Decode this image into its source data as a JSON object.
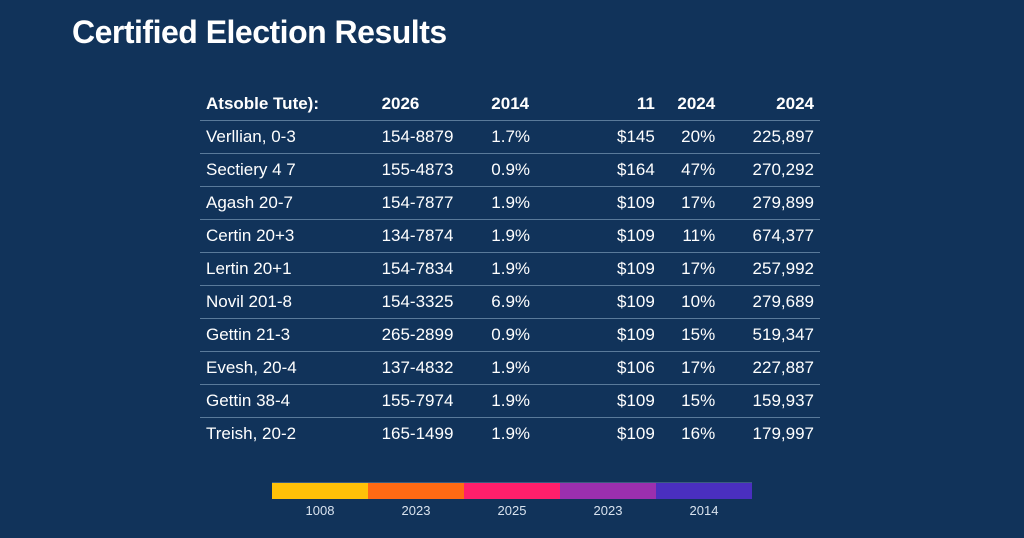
{
  "title": "Certified Election Results",
  "table": {
    "header_label": "Atsoble Tute):",
    "columns": [
      "2026",
      "2014",
      "11",
      "2024",
      "2024"
    ],
    "rows": [
      {
        "name": "Verllian, 0-3",
        "code": "154-8879",
        "pct": "1.7%",
        "amt": "$145",
        "pct2": "20%",
        "total": "225,897"
      },
      {
        "name": "Sectiery 4 7",
        "code": "155-4873",
        "pct": "0.9%",
        "amt": "$164",
        "pct2": "47%",
        "total": "270,292"
      },
      {
        "name": "Agash 20-7",
        "code": "154-7877",
        "pct": "1.9%",
        "amt": "$109",
        "pct2": "17%",
        "total": "279,899"
      },
      {
        "name": "Certin 20+3",
        "code": "134-7874",
        "pct": "1.9%",
        "amt": "$109",
        "pct2": "11%",
        "total": "674,377"
      },
      {
        "name": "Lertin 20+1",
        "code": "154-7834",
        "pct": "1.9%",
        "amt": "$109",
        "pct2": "17%",
        "total": "257,992"
      },
      {
        "name": "Novil 201-8",
        "code": "154-3325",
        "pct": "6.9%",
        "amt": "$109",
        "pct2": "10%",
        "total": "279,689"
      },
      {
        "name": "Gettin 21-3",
        "code": "265-2899",
        "pct": "0.9%",
        "amt": "$109",
        "pct2": "15%",
        "total": "519,347"
      },
      {
        "name": "Evesh, 20-4",
        "code": "137-4832",
        "pct": "1.9%",
        "amt": "$106",
        "pct2": "17%",
        "total": "227,887"
      },
      {
        "name": "Gettin 38-4",
        "code": "155-7974",
        "pct": "1.9%",
        "amt": "$109",
        "pct2": "15%",
        "total": "159,937"
      },
      {
        "name": "Treish, 20-2",
        "code": "165-1499",
        "pct": "1.9%",
        "amt": "$109",
        "pct2": "16%",
        "total": "179,997"
      }
    ],
    "header_fontweight": "700",
    "row_border_color": "#5a7a9a",
    "fontsize": 17,
    "text_color": "#ffffff"
  },
  "legend": {
    "items": [
      {
        "label": "1008",
        "color": "#ffc108"
      },
      {
        "label": "2023",
        "color": "#ff6a13"
      },
      {
        "label": "2025",
        "color": "#ff1f6b"
      },
      {
        "label": "2023",
        "color": "#9b2fae"
      },
      {
        "label": "2014",
        "color": "#4a2fbf"
      }
    ],
    "label_fontsize": 13,
    "label_color": "#d8e2ee",
    "swatch_height": 16
  },
  "background_color": "#11335a",
  "title_fontsize": 32,
  "title_color": "#ffffff"
}
